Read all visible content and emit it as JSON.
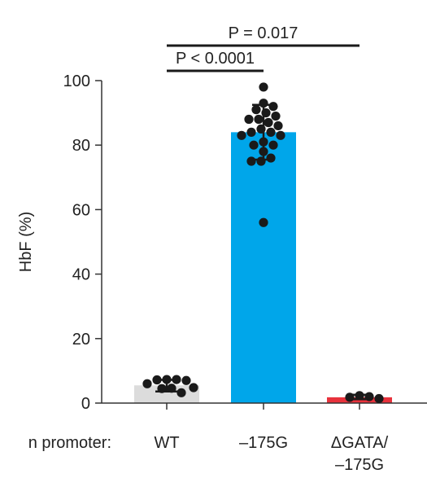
{
  "chart_data": {
    "type": "bar",
    "ylabel": "HbF (%)",
    "ylim": [
      0,
      100
    ],
    "yticks": [
      0,
      20,
      40,
      60,
      80,
      100
    ],
    "row_label": "n promoter:",
    "categories": [
      {
        "lines": [
          "WT"
        ],
        "value": 5.5,
        "color": "#dcdcdc",
        "error": [
          3.6,
          7.2
        ],
        "points": [
          7.3,
          7.3,
          7.2,
          7.0,
          6.0,
          4.8,
          4.6,
          4.5,
          3.2
        ]
      },
      {
        "lines": [
          "–175G"
        ],
        "value": 84,
        "color": "#00a6ea",
        "error": [
          75.5,
          92.5
        ],
        "points": [
          98,
          93,
          92,
          91,
          90,
          89,
          88,
          88,
          87,
          86,
          85,
          84,
          84,
          83,
          83,
          81,
          80,
          80,
          78,
          76,
          75,
          75,
          56
        ]
      },
      {
        "lines": [
          "ΔGATA/",
          "–175G"
        ],
        "value": 1.8,
        "color": "#e8323c",
        "error": [
          1.2,
          2.6
        ],
        "points": [
          2.3,
          2.0,
          1.8,
          1.4
        ]
      }
    ],
    "significance": [
      {
        "label": "P < 0.0001",
        "from": 0,
        "to": 1
      },
      {
        "label": "P = 0.017",
        "from": 0,
        "to": 2
      }
    ],
    "colors": {
      "axis": "#333333",
      "dot": "#1a1a1a"
    }
  }
}
